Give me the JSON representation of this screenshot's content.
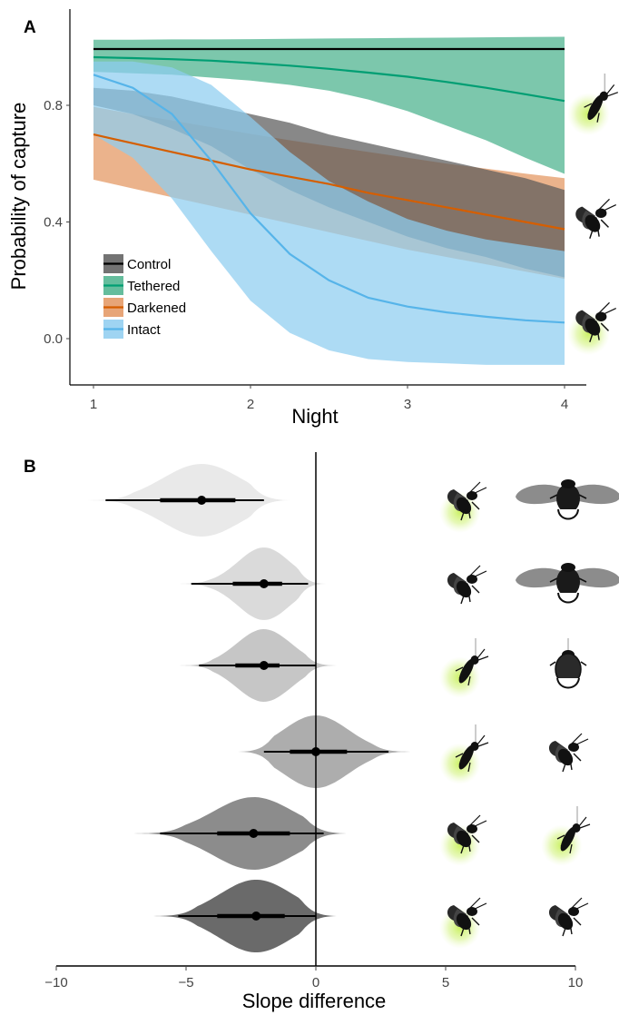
{
  "chart_data": [
    {
      "panel": "A",
      "type": "line",
      "xlabel": "Night",
      "ylabel": "Probability of capture",
      "xlim": [
        0.85,
        4.15
      ],
      "ylim": [
        -0.09,
        1.12
      ],
      "xticks": [
        1,
        2,
        3,
        4
      ],
      "yticks": [
        0.0,
        0.4,
        0.8
      ],
      "ytick_labels": [
        "0.0",
        "0.4",
        "0.8"
      ],
      "legend_position": "bottom-left",
      "grid": false,
      "x": [
        1,
        1.25,
        1.5,
        1.75,
        2,
        2.25,
        2.5,
        2.75,
        3,
        3.25,
        3.5,
        3.75,
        4
      ],
      "series": [
        {
          "name": "Control",
          "color": "#000000",
          "band_color": "#5a5a5a",
          "values": [
            0.993,
            0.993,
            0.993,
            0.993,
            0.993,
            0.993,
            0.993,
            0.993,
            0.993,
            0.993,
            0.993,
            0.993,
            0.993
          ],
          "lower": [
            0.8,
            0.77,
            0.72,
            0.66,
            0.58,
            0.51,
            0.45,
            0.4,
            0.35,
            0.31,
            0.28,
            0.24,
            0.21
          ],
          "upper": [
            0.86,
            0.85,
            0.83,
            0.8,
            0.77,
            0.74,
            0.7,
            0.67,
            0.64,
            0.61,
            0.58,
            0.55,
            0.51
          ]
        },
        {
          "name": "Tethered",
          "color": "#009e73",
          "band_color": "#4ab28c",
          "values": [
            0.965,
            0.962,
            0.958,
            0.953,
            0.945,
            0.936,
            0.925,
            0.912,
            0.898,
            0.88,
            0.86,
            0.838,
            0.815
          ],
          "lower": [
            0.915,
            0.91,
            0.905,
            0.895,
            0.885,
            0.87,
            0.85,
            0.82,
            0.78,
            0.73,
            0.68,
            0.62,
            0.565
          ],
          "upper": [
            1.025,
            1.025,
            1.026,
            1.026,
            1.027,
            1.028,
            1.029,
            1.03,
            1.031,
            1.032,
            1.033,
            1.034,
            1.035
          ]
        },
        {
          "name": "Darkened",
          "color": "#d55e00",
          "band_color": "#e39560",
          "values": [
            0.7,
            0.67,
            0.64,
            0.61,
            0.58,
            0.555,
            0.53,
            0.5,
            0.475,
            0.45,
            0.425,
            0.4,
            0.375
          ],
          "lower": [
            0.545,
            0.515,
            0.485,
            0.455,
            0.425,
            0.395,
            0.365,
            0.335,
            0.305,
            0.28,
            0.255,
            0.23,
            0.205
          ],
          "upper": [
            0.795,
            0.77,
            0.748,
            0.725,
            0.702,
            0.68,
            0.66,
            0.64,
            0.62,
            0.6,
            0.583,
            0.566,
            0.55
          ]
        },
        {
          "name": "Intact",
          "color": "#56b4e9",
          "band_color": "#8ecdf0",
          "values": [
            0.905,
            0.86,
            0.77,
            0.61,
            0.43,
            0.29,
            0.2,
            0.14,
            0.11,
            0.09,
            0.075,
            0.063,
            0.055
          ],
          "lower": [
            0.7,
            0.62,
            0.48,
            0.3,
            0.13,
            0.02,
            -0.04,
            -0.07,
            -0.08,
            -0.085,
            -0.09,
            -0.09,
            -0.09
          ],
          "upper": [
            0.95,
            0.95,
            0.93,
            0.87,
            0.76,
            0.64,
            0.54,
            0.47,
            0.41,
            0.37,
            0.34,
            0.32,
            0.3
          ]
        }
      ]
    },
    {
      "panel": "B",
      "type": "violin",
      "xlabel": "Slope difference",
      "ylabel": "",
      "xlim": [
        -10,
        10
      ],
      "xticks": [
        -10,
        -5,
        0,
        5,
        10
      ],
      "xtick_labels": [
        "−10",
        "−5",
        "0",
        "5",
        "10"
      ],
      "reference_line_x": 0,
      "grid": false,
      "rows": [
        {
          "median": -4.4,
          "ci50": [
            -6.0,
            -3.1
          ],
          "ci95": [
            -8.1,
            -2.0
          ],
          "range": [
            -9.2,
            -1.0
          ],
          "sd": 1.5,
          "fill": "#e9e9e9"
        },
        {
          "median": -2.0,
          "ci50": [
            -3.2,
            -1.3
          ],
          "ci95": [
            -4.8,
            -0.3
          ],
          "range": [
            -6.0,
            0.4
          ],
          "sd": 1.0,
          "fill": "#dadada"
        },
        {
          "median": -2.0,
          "ci50": [
            -3.1,
            -1.4
          ],
          "ci95": [
            -4.5,
            0.0
          ],
          "range": [
            -5.6,
            0.9
          ],
          "sd": 1.05,
          "fill": "#c6c6c6"
        },
        {
          "median": 0.0,
          "ci50": [
            -1.0,
            1.2
          ],
          "ci95": [
            -2.0,
            2.8
          ],
          "range": [
            -3.0,
            4.0
          ],
          "sd": 1.25,
          "fill": "#adadad"
        },
        {
          "median": -2.4,
          "ci50": [
            -3.8,
            -1.0
          ],
          "ci95": [
            -6.0,
            0.3
          ],
          "range": [
            -7.3,
            1.2
          ],
          "sd": 1.55,
          "fill": "#8c8c8c"
        },
        {
          "median": -2.3,
          "ci50": [
            -3.8,
            -1.2
          ],
          "ci95": [
            -5.3,
            0.0
          ],
          "range": [
            -6.5,
            0.8
          ],
          "sd": 1.4,
          "fill": "#6a6a6a"
        }
      ],
      "icon_pairs": [
        {
          "left": "glowing-firefly-flying-icon",
          "right": "spread-wing-beetle-icon"
        },
        {
          "left": "firefly-flying-icon",
          "right": "spread-wing-beetle-icon"
        },
        {
          "left": "glowing-tethered-firefly-icon",
          "right": "tethered-beetle-icon"
        },
        {
          "left": "glowing-tethered-firefly-icon",
          "right": "firefly-flying-icon"
        },
        {
          "left": "glowing-firefly-flying-icon",
          "right": "glowing-tethered-firefly-icon"
        },
        {
          "left": "glowing-firefly-flying-icon",
          "right": "firefly-flying-icon"
        }
      ]
    }
  ],
  "panel_A_icons": [
    "glowing-tethered-firefly-icon",
    "firefly-flying-icon",
    "glowing-firefly-flying-icon"
  ],
  "glow_color": "#d9f58a"
}
